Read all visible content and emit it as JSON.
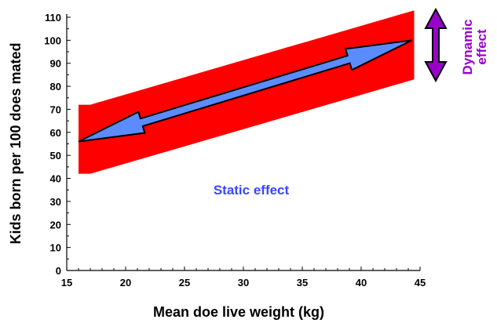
{
  "chart_data": {
    "type": "area",
    "xlabel": "Mean doe live weight (kg)",
    "ylabel": "Kids born per 100 does mated",
    "xlim": [
      15,
      45
    ],
    "ylim": [
      0,
      110
    ],
    "xticks": [
      15,
      20,
      25,
      30,
      35,
      40,
      45
    ],
    "yticks": [
      0,
      10,
      20,
      30,
      40,
      50,
      60,
      70,
      80,
      90,
      100,
      110
    ],
    "grid": false,
    "band": {
      "x": [
        16,
        17,
        44.5
      ],
      "upper": [
        72,
        72,
        113
      ],
      "lower": [
        42,
        42,
        83
      ],
      "color": "#ff0000"
    },
    "static_arrow": {
      "from": [
        16,
        56
      ],
      "to": [
        44.3,
        100
      ],
      "color": "#5b8cff"
    },
    "annotations": {
      "static_label": "Static effect",
      "static_color": "#3a46ff",
      "dynamic_label_line1": "Dynamic",
      "dynamic_label_line2": "effect",
      "dynamic_color": "#9900cc"
    }
  }
}
